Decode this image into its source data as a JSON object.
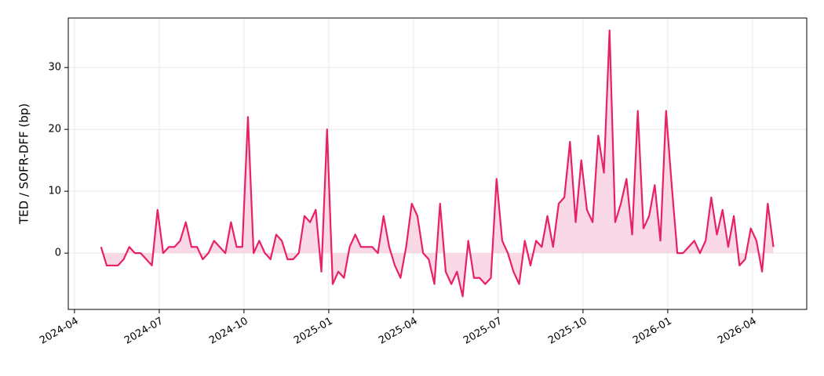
{
  "chart_data": {
    "type": "line",
    "ylabel": "TED / SOFR-DFF (bp)",
    "x": [
      0.94,
      1.14,
      1.34,
      1.54,
      1.74,
      1.94,
      2.14,
      2.34,
      2.54,
      2.74,
      2.94,
      3.14,
      3.34,
      3.54,
      3.74,
      3.94,
      4.14,
      4.34,
      4.54,
      4.74,
      4.94,
      5.14,
      5.34,
      5.54,
      5.74,
      5.94,
      6.14,
      6.34,
      6.54,
      6.74,
      6.94,
      7.14,
      7.34,
      7.54,
      7.74,
      7.94,
      8.14,
      8.34,
      8.54,
      8.74,
      8.94,
      9.14,
      9.34,
      9.54,
      9.74,
      9.94,
      10.14,
      10.34,
      10.54,
      10.74,
      10.94,
      11.14,
      11.34,
      11.54,
      11.74,
      11.94,
      12.14,
      12.34,
      12.54,
      12.74,
      12.94,
      13.14,
      13.34,
      13.54,
      13.74,
      13.94,
      14.14,
      14.34,
      14.54,
      14.74,
      14.94,
      15.14,
      15.34,
      15.54,
      15.74,
      15.94,
      16.14,
      16.34,
      16.54,
      16.74,
      16.94,
      17.14,
      17.34,
      17.54,
      17.74,
      17.94,
      18.14,
      18.34,
      18.54,
      18.74,
      18.94,
      19.14,
      19.34,
      19.54,
      19.74,
      19.94,
      20.14,
      20.34,
      20.54,
      20.74,
      20.94,
      21.14,
      21.34,
      21.54,
      21.74,
      21.94,
      22.14,
      22.34,
      22.54,
      22.74,
      22.94,
      23.14,
      23.34,
      23.54,
      23.74,
      23.94,
      24.14,
      24.34,
      24.54,
      24.74
    ],
    "series": [
      {
        "color": "#e8206a",
        "fill": "#f8d0de",
        "values": [
          1,
          -2,
          -2,
          -2,
          -1,
          1,
          0,
          0,
          -1,
          -2,
          7,
          0,
          1,
          1,
          2,
          5,
          1,
          1,
          -1,
          0,
          2,
          1,
          0,
          5,
          1,
          1,
          22,
          0,
          2,
          0,
          -1,
          3,
          2,
          -1,
          -1,
          0,
          6,
          5,
          7,
          -3,
          20,
          -5,
          -3,
          -4,
          1,
          3,
          1,
          1,
          1,
          0,
          6,
          1,
          -2,
          -4,
          1,
          8,
          6,
          0,
          -1,
          -5,
          8,
          -3,
          -5,
          -3,
          -7,
          2,
          -4,
          -4,
          -5,
          -4,
          12,
          2,
          0,
          -3,
          -5,
          2,
          -2,
          2,
          1,
          6,
          1,
          8,
          9,
          18,
          5,
          15,
          7,
          5,
          19,
          13,
          36,
          5,
          8,
          12,
          3,
          23,
          4,
          6,
          11,
          2,
          23,
          11,
          0,
          0,
          1,
          2,
          0,
          2,
          9,
          3,
          7,
          1,
          6,
          -2,
          -1,
          4,
          2,
          -3,
          8,
          1
        ]
      }
    ],
    "xlim": [
      -0.22,
      25.92
    ],
    "xticks": [
      {
        "value": 0,
        "label": "2024-04"
      },
      {
        "value": 3,
        "label": "2024-07"
      },
      {
        "value": 6,
        "label": "2024-10"
      },
      {
        "value": 9,
        "label": "2025-01"
      },
      {
        "value": 12,
        "label": "2025-04"
      },
      {
        "value": 15,
        "label": "2025-07"
      },
      {
        "value": 18,
        "label": "2025-10"
      },
      {
        "value": 21,
        "label": "2026-01"
      },
      {
        "value": 24,
        "label": "2026-04"
      }
    ],
    "ylim": [
      -9.1,
      38
    ],
    "yticks": [
      0,
      10,
      20,
      30
    ],
    "grid": true
  }
}
